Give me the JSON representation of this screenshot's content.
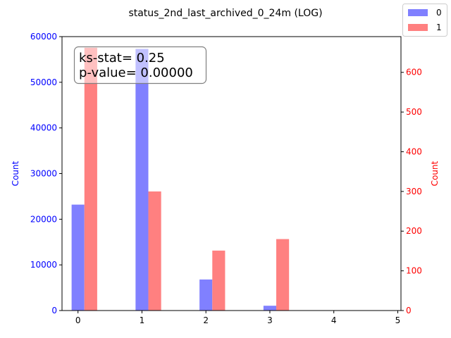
{
  "chart_data": {
    "type": "bar",
    "title": "status_2nd_last_archived_0_24m (LOG)",
    "xlabel": "",
    "xlim": [
      -0.25,
      5.05
    ],
    "x_ticks": [
      0,
      1,
      2,
      3,
      4,
      5
    ],
    "bar_width": 0.2,
    "grid": false,
    "legend_position": "top-right",
    "left_axis": {
      "label": "Count",
      "color": "#0000ff",
      "ylim": [
        0,
        60000
      ],
      "ticks": [
        0,
        10000,
        20000,
        30000,
        40000,
        50000,
        60000
      ]
    },
    "right_axis": {
      "label": "Count",
      "color": "#ff0000",
      "ylim": [
        0,
        690
      ],
      "ticks": [
        0,
        100,
        200,
        300,
        400,
        500,
        600
      ]
    },
    "series": [
      {
        "name": "0",
        "axis": "left",
        "color": "#8080ff",
        "x": [
          0,
          1,
          2,
          3
        ],
        "values": [
          23200,
          57300,
          6800,
          1050
        ]
      },
      {
        "name": "1",
        "axis": "right",
        "color": "#ff8080",
        "x": [
          0.2,
          1.2,
          2.2,
          3.2
        ],
        "values": [
          662,
          300,
          151,
          180
        ]
      }
    ],
    "annotation": {
      "lines": [
        "ks-stat= 0.25",
        "p-value= 0.00000"
      ],
      "position": "top-left"
    }
  }
}
